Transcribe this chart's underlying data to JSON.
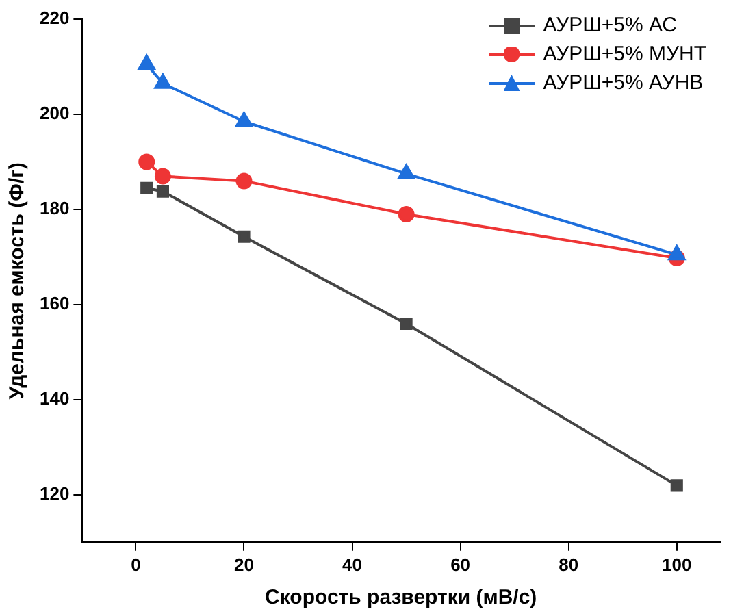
{
  "chart_data": {
    "type": "line",
    "xlabel": "Скорость развертки (мВ/с)",
    "ylabel": "Удельная емкость (Ф/г)",
    "xlim": [
      -10,
      108
    ],
    "xticks": [
      0,
      20,
      40,
      60,
      80,
      100
    ],
    "ylim": [
      110,
      220
    ],
    "yticks": [
      120,
      140,
      160,
      180,
      200,
      220
    ],
    "grid": false,
    "legend": "top right",
    "line_style": "solid",
    "series": [
      {
        "name": "АУРШ+5% АС",
        "color": "#454545",
        "marker": "square",
        "x": [
          2,
          5,
          20,
          50,
          100
        ],
        "values": [
          184.5,
          183.8,
          174.3,
          156,
          122
        ]
      },
      {
        "name": "АУРШ+5% МУНТ",
        "color": "#ee3535",
        "marker": "circle",
        "x": [
          2,
          5,
          20,
          50,
          100
        ],
        "values": [
          190,
          187,
          186,
          179,
          169.8
        ]
      },
      {
        "name": "АУРШ+5% АУНВ",
        "color": "#1e6fdc",
        "marker": "triangle",
        "x": [
          2,
          5,
          20,
          50,
          100
        ],
        "values": [
          210.5,
          206.5,
          198.5,
          187.5,
          170.5
        ]
      }
    ]
  }
}
